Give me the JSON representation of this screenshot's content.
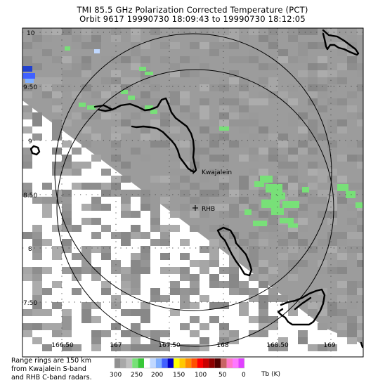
{
  "title_line1": "TMI 85.5 GHz Polarization Corrected Temperature (PCT)",
  "title_line2": "Orbit 9617 19990730 18:09:43 to 19990730 18:12:05",
  "lat_ticks": [
    "10",
    "9.50",
    "9",
    "8.50",
    "8",
    "7.50"
  ],
  "lon_ticks": [
    "166.50",
    "167",
    "167.50",
    "168",
    "168.50",
    "169"
  ],
  "stations": [
    {
      "name": "Kwajalein",
      "symbol": "+"
    },
    {
      "name": "RHB",
      "symbol": "+"
    }
  ],
  "range_note": [
    "Range rings are 150 km",
    "from Kwajalein S-band",
    "and RHB C-band radars."
  ],
  "colorbar": {
    "labels": [
      "300",
      "250",
      "200",
      "150",
      "100",
      "50",
      "0"
    ],
    "units": "Tb (K)",
    "colors": [
      "#909090",
      "#a8a8a8",
      "#c0c0c0",
      "#78e078",
      "#38c838",
      "#ffffff",
      "#c0d8ff",
      "#80b0ff",
      "#4060ff",
      "#0000c8",
      "#ffff00",
      "#ffc800",
      "#ff8c00",
      "#ff5000",
      "#ff0000",
      "#c80000",
      "#8c0000",
      "#500000",
      "#c86464",
      "#ff78c8",
      "#ff78ff",
      "#e040ff"
    ]
  },
  "colors": {
    "swath_gray": "#9c9c9c",
    "precip_green": "#78e078",
    "cold_blue": "#2040d0",
    "coast": "#000000"
  }
}
